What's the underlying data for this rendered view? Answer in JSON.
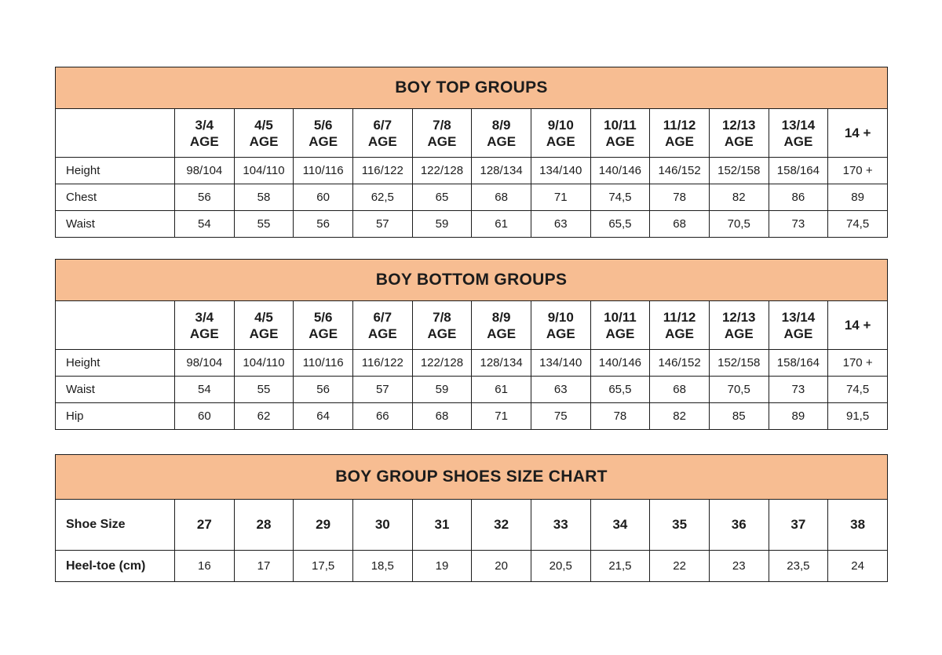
{
  "colors": {
    "title_bg": "#F7BD92",
    "border": "#1C1C1C",
    "text": "#1C1C1C",
    "background": "#FFFFFF"
  },
  "chart_data": [
    {
      "type": "table",
      "title": "BOY TOP GROUPS",
      "columns": [
        {
          "age": "3/4",
          "label": "AGE"
        },
        {
          "age": "4/5",
          "label": "AGE"
        },
        {
          "age": "5/6",
          "label": "AGE"
        },
        {
          "age": "6/7",
          "label": "AGE"
        },
        {
          "age": "7/8",
          "label": "AGE"
        },
        {
          "age": "8/9",
          "label": "AGE"
        },
        {
          "age": "9/10",
          "label": "AGE"
        },
        {
          "age": "10/11",
          "label": "AGE"
        },
        {
          "age": "11/12",
          "label": "AGE"
        },
        {
          "age": "12/13",
          "label": "AGE"
        },
        {
          "age": "13/14",
          "label": "AGE"
        },
        {
          "age": "14 +",
          "label": ""
        }
      ],
      "rows": [
        {
          "label": "Height",
          "values": [
            "98/104",
            "104/110",
            "110/116",
            "116/122",
            "122/128",
            "128/134",
            "134/140",
            "140/146",
            "146/152",
            "152/158",
            "158/164",
            "170 +"
          ]
        },
        {
          "label": "Chest",
          "values": [
            "56",
            "58",
            "60",
            "62,5",
            "65",
            "68",
            "71",
            "74,5",
            "78",
            "82",
            "86",
            "89"
          ]
        },
        {
          "label": "Waist",
          "values": [
            "54",
            "55",
            "56",
            "57",
            "59",
            "61",
            "63",
            "65,5",
            "68",
            "70,5",
            "73",
            "74,5"
          ]
        }
      ]
    },
    {
      "type": "table",
      "title": "BOY BOTTOM GROUPS",
      "columns": [
        {
          "age": "3/4",
          "label": "AGE"
        },
        {
          "age": "4/5",
          "label": "AGE"
        },
        {
          "age": "5/6",
          "label": "AGE"
        },
        {
          "age": "6/7",
          "label": "AGE"
        },
        {
          "age": "7/8",
          "label": "AGE"
        },
        {
          "age": "8/9",
          "label": "AGE"
        },
        {
          "age": "9/10",
          "label": "AGE"
        },
        {
          "age": "10/11",
          "label": "AGE"
        },
        {
          "age": "11/12",
          "label": "AGE"
        },
        {
          "age": "12/13",
          "label": "AGE"
        },
        {
          "age": "13/14",
          "label": "AGE"
        },
        {
          "age": "14 +",
          "label": ""
        }
      ],
      "rows": [
        {
          "label": "Height",
          "values": [
            "98/104",
            "104/110",
            "110/116",
            "116/122",
            "122/128",
            "128/134",
            "134/140",
            "140/146",
            "146/152",
            "152/158",
            "158/164",
            "170 +"
          ]
        },
        {
          "label": "Waist",
          "values": [
            "54",
            "55",
            "56",
            "57",
            "59",
            "61",
            "63",
            "65,5",
            "68",
            "70,5",
            "73",
            "74,5"
          ]
        },
        {
          "label": "Hip",
          "values": [
            "60",
            "62",
            "64",
            "66",
            "68",
            "71",
            "75",
            "78",
            "82",
            "85",
            "89",
            "91,5"
          ]
        }
      ]
    },
    {
      "type": "table",
      "title": "BOY GROUP SHOES SIZE CHART",
      "rows": [
        {
          "label": "Shoe Size",
          "values": [
            "27",
            "28",
            "29",
            "30",
            "31",
            "32",
            "33",
            "34",
            "35",
            "36",
            "37",
            "38"
          ]
        },
        {
          "label": "Heel-toe (cm)",
          "values": [
            "16",
            "17",
            "17,5",
            "18,5",
            "19",
            "20",
            "20,5",
            "21,5",
            "22",
            "23",
            "23,5",
            "24"
          ]
        }
      ]
    }
  ]
}
